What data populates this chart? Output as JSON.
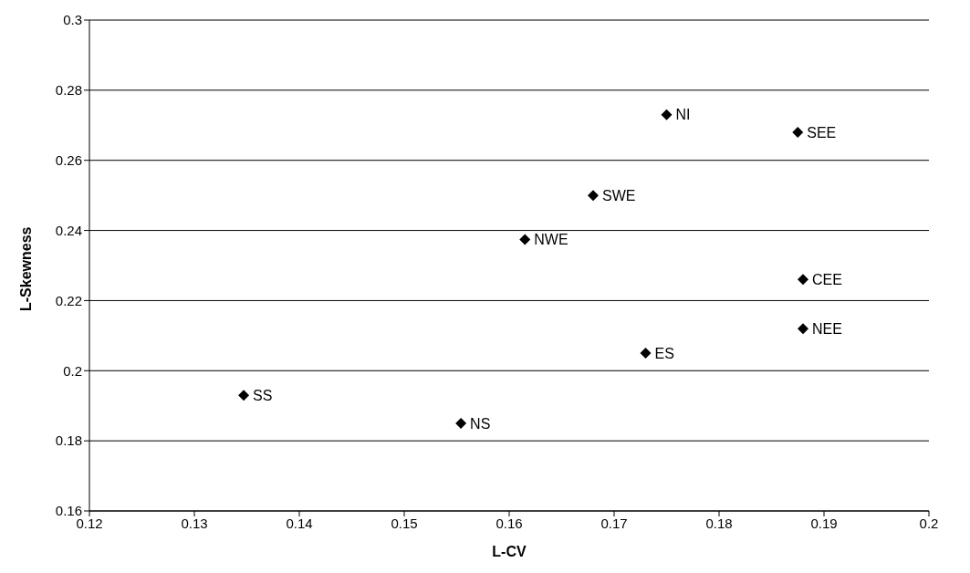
{
  "chart_data": {
    "type": "scatter",
    "xlabel": "L-CV",
    "ylabel": "L-Skewness",
    "x": [
      0.175,
      0.1875,
      0.168,
      0.1615,
      0.188,
      0.188,
      0.173,
      0.1347,
      0.1554
    ],
    "values": [
      0.273,
      0.268,
      0.25,
      0.2374,
      0.226,
      0.212,
      0.205,
      0.193,
      0.185
    ],
    "color": "#000000",
    "marker": "diamond",
    "xlim": [
      0.12,
      0.2
    ],
    "xticks": [
      0.12,
      0.13,
      0.14,
      0.15,
      0.16,
      0.17,
      0.18,
      0.19,
      0.2
    ],
    "ylim": [
      0.16,
      0.3
    ],
    "yticks": [
      0.16,
      0.18,
      0.2,
      0.22,
      0.24,
      0.26,
      0.28,
      0.3
    ],
    "grid": "y",
    "legend": false,
    "annotations": [
      {
        "text": "NI",
        "x": 0.175,
        "y": 0.273
      },
      {
        "text": "SEE",
        "x": 0.1875,
        "y": 0.268
      },
      {
        "text": "SWE",
        "x": 0.168,
        "y": 0.25
      },
      {
        "text": "NWE",
        "x": 0.1615,
        "y": 0.2374
      },
      {
        "text": "CEE",
        "x": 0.188,
        "y": 0.226
      },
      {
        "text": "NEE",
        "x": 0.188,
        "y": 0.212
      },
      {
        "text": "ES",
        "x": 0.173,
        "y": 0.205
      },
      {
        "text": "SS",
        "x": 0.1347,
        "y": 0.193
      },
      {
        "text": "NS",
        "x": 0.1554,
        "y": 0.185
      }
    ]
  }
}
